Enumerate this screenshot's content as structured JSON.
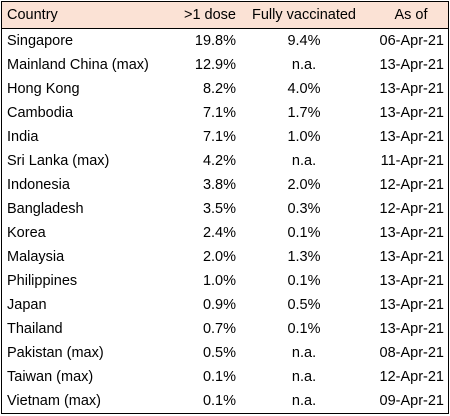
{
  "table": {
    "headers": {
      "country": "Country",
      "dose": ">1 dose",
      "full": "Fully vaccinated",
      "date": "As of"
    },
    "header_bg": "#fbe2d5",
    "rows": [
      {
        "country": "Singapore",
        "dose": "19.8%",
        "full": "9.4%",
        "date": "06-Apr-21"
      },
      {
        "country": "Mainland China (max)",
        "dose": "12.9%",
        "full": "n.a.",
        "date": "13-Apr-21"
      },
      {
        "country": "Hong Kong",
        "dose": "8.2%",
        "full": "4.0%",
        "date": "13-Apr-21"
      },
      {
        "country": "Cambodia",
        "dose": "7.1%",
        "full": "1.7%",
        "date": "13-Apr-21"
      },
      {
        "country": "India",
        "dose": "7.1%",
        "full": "1.0%",
        "date": "13-Apr-21"
      },
      {
        "country": "Sri Lanka (max)",
        "dose": "4.2%",
        "full": "n.a.",
        "date": "11-Apr-21"
      },
      {
        "country": "Indonesia",
        "dose": "3.8%",
        "full": "2.0%",
        "date": "12-Apr-21"
      },
      {
        "country": "Bangladesh",
        "dose": "3.5%",
        "full": "0.3%",
        "date": "12-Apr-21"
      },
      {
        "country": "Korea",
        "dose": "2.4%",
        "full": "0.1%",
        "date": "13-Apr-21"
      },
      {
        "country": "Malaysia",
        "dose": "2.0%",
        "full": "1.3%",
        "date": "13-Apr-21"
      },
      {
        "country": "Philippines",
        "dose": "1.0%",
        "full": "0.1%",
        "date": "13-Apr-21"
      },
      {
        "country": "Japan",
        "dose": "0.9%",
        "full": "0.5%",
        "date": "13-Apr-21"
      },
      {
        "country": "Thailand",
        "dose": "0.7%",
        "full": "0.1%",
        "date": "13-Apr-21"
      },
      {
        "country": "Pakistan (max)",
        "dose": "0.5%",
        "full": "n.a.",
        "date": "08-Apr-21"
      },
      {
        "country": "Taiwan (max)",
        "dose": "0.1%",
        "full": "n.a.",
        "date": "12-Apr-21"
      },
      {
        "country": "Vietnam (max)",
        "dose": "0.1%",
        "full": "n.a.",
        "date": "09-Apr-21"
      }
    ]
  }
}
